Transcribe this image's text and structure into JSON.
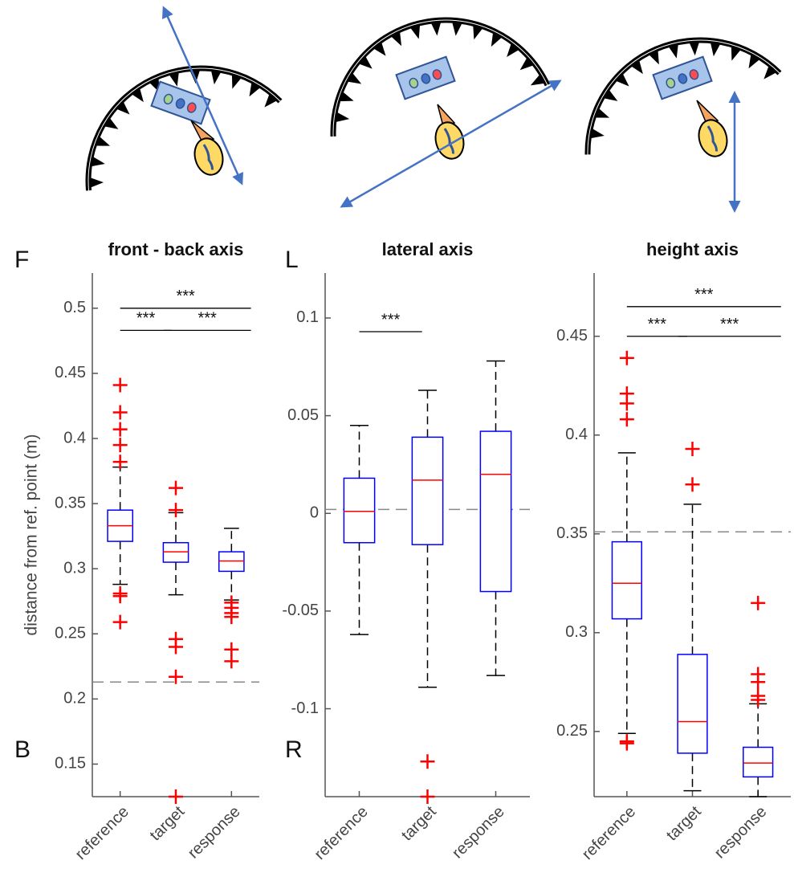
{
  "chart_data": [
    {
      "type": "box",
      "title": "front - back axis",
      "top_label": "F",
      "bottom_label": "B",
      "y_label": "distance from ref. point (m)",
      "categories": [
        "reference",
        "target",
        "response"
      ],
      "ylim": [
        0.125,
        0.527
      ],
      "yticks": [
        0.15,
        0.2,
        0.25,
        0.3,
        0.35,
        0.4,
        0.45,
        0.5
      ],
      "box_color": "#0000ff",
      "median_color": "#ff0000",
      "outlier_color": "#ff0000",
      "whisker_color": "#000000",
      "reference_line": 0.213,
      "boxes": [
        {
          "whisker_low": 0.288,
          "q1": 0.321,
          "median": 0.333,
          "q3": 0.345,
          "whisker_high": 0.378,
          "outliers": [
            0.441,
            0.42,
            0.407,
            0.395,
            0.382,
            0.281,
            0.279,
            0.259
          ]
        },
        {
          "whisker_low": 0.28,
          "q1": 0.305,
          "median": 0.313,
          "q3": 0.32,
          "whisker_high": 0.343,
          "outliers": [
            0.362,
            0.345,
            0.246,
            0.24,
            0.217,
            0.125
          ]
        },
        {
          "whisker_low": 0.276,
          "q1": 0.298,
          "median": 0.306,
          "q3": 0.313,
          "whisker_high": 0.331,
          "outliers": [
            0.274,
            0.27,
            0.266,
            0.263,
            0.238,
            0.229
          ]
        }
      ],
      "significance": [
        {
          "from": 0,
          "to": 2,
          "y": 0.5,
          "label": "***"
        },
        {
          "from": 0,
          "to": 1,
          "y": 0.483,
          "label": "***"
        },
        {
          "from": 1,
          "to": 2,
          "y": 0.483,
          "label": "***"
        }
      ]
    },
    {
      "type": "box",
      "title": "lateral axis",
      "top_label": "L",
      "bottom_label": "R",
      "categories": [
        "reference",
        "target",
        "response"
      ],
      "ylim": [
        -0.145,
        0.123
      ],
      "yticks": [
        -0.1,
        -0.05,
        0,
        0.05,
        0.1
      ],
      "box_color": "#0000ff",
      "median_color": "#ff0000",
      "outlier_color": "#ff0000",
      "whisker_color": "#000000",
      "reference_line": 0.002,
      "boxes": [
        {
          "whisker_low": -0.062,
          "q1": -0.015,
          "median": 0.001,
          "q3": 0.018,
          "whisker_high": 0.045,
          "outliers": []
        },
        {
          "whisker_low": -0.089,
          "q1": -0.016,
          "median": 0.017,
          "q3": 0.039,
          "whisker_high": 0.063,
          "outliers": [
            -0.127,
            -0.145
          ]
        },
        {
          "whisker_low": -0.083,
          "q1": -0.04,
          "median": 0.02,
          "q3": 0.042,
          "whisker_high": 0.078,
          "outliers": []
        }
      ],
      "significance": [
        {
          "from": 0,
          "to": 1,
          "y": 0.093,
          "label": "***"
        }
      ]
    },
    {
      "type": "box",
      "title": "height axis",
      "categories": [
        "reference",
        "target",
        "response"
      ],
      "ylim": [
        0.217,
        0.482
      ],
      "yticks": [
        0.25,
        0.3,
        0.35,
        0.4,
        0.45
      ],
      "box_color": "#0000ff",
      "median_color": "#ff0000",
      "outlier_color": "#ff0000",
      "whisker_color": "#000000",
      "reference_line": 0.351,
      "boxes": [
        {
          "whisker_low": 0.249,
          "q1": 0.307,
          "median": 0.325,
          "q3": 0.346,
          "whisker_high": 0.391,
          "outliers": [
            0.439,
            0.421,
            0.416,
            0.408,
            0.245,
            0.244
          ]
        },
        {
          "whisker_low": 0.22,
          "q1": 0.239,
          "median": 0.255,
          "q3": 0.289,
          "whisker_high": 0.365,
          "outliers": [
            0.393,
            0.375
          ]
        },
        {
          "whisker_low": 0.217,
          "q1": 0.227,
          "median": 0.234,
          "q3": 0.242,
          "whisker_high": 0.264,
          "outliers": [
            0.315,
            0.279,
            0.275,
            0.268,
            0.266
          ]
        }
      ],
      "significance": [
        {
          "from": 0,
          "to": 2,
          "y": 0.465,
          "label": "***"
        },
        {
          "from": 0,
          "to": 1,
          "y": 0.45,
          "label": "***"
        },
        {
          "from": 1,
          "to": 2,
          "y": 0.45,
          "label": "***"
        }
      ]
    }
  ]
}
